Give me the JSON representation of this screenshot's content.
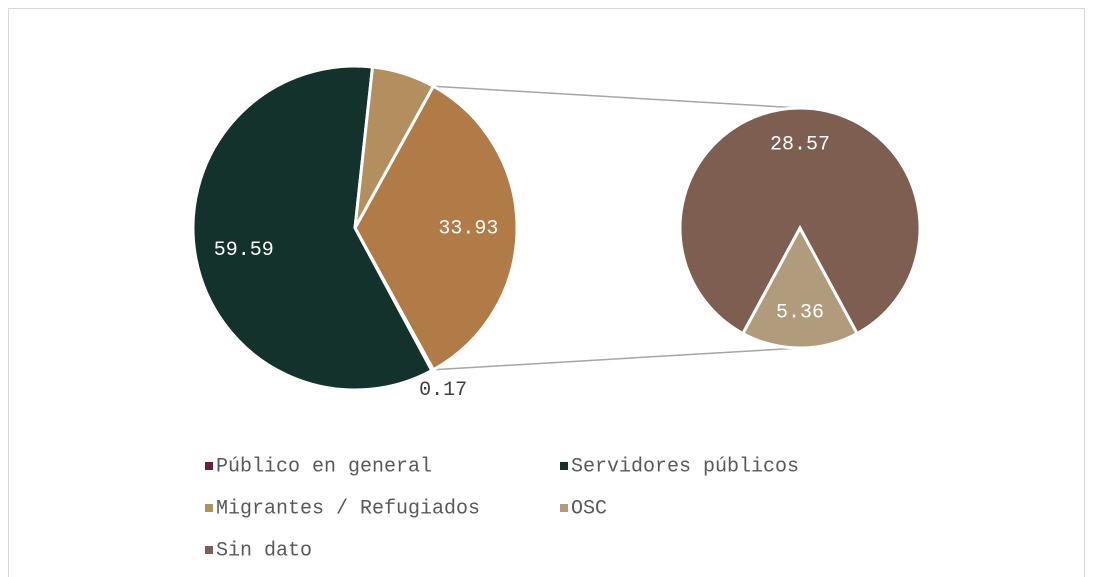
{
  "chart_data": {
    "type": "pie_of_pie",
    "categories": [
      "Público en general",
      "Servidores públicos",
      "Migrantes / Refugiados",
      "OSC",
      "Sin dato"
    ],
    "values": [
      0.17,
      59.59,
      6.31,
      5.36,
      28.57
    ],
    "value_labels": [
      "0.17",
      "59.59",
      null,
      "5.36",
      "28.57"
    ],
    "colors": [
      "#6b1f3c",
      "#14322c",
      "#b38f5f",
      "#b09c7c",
      "#7d5e50"
    ],
    "secondary_start": 3,
    "other_value": 33.93,
    "other_color": "#b07b47",
    "legend": "bottom"
  }
}
